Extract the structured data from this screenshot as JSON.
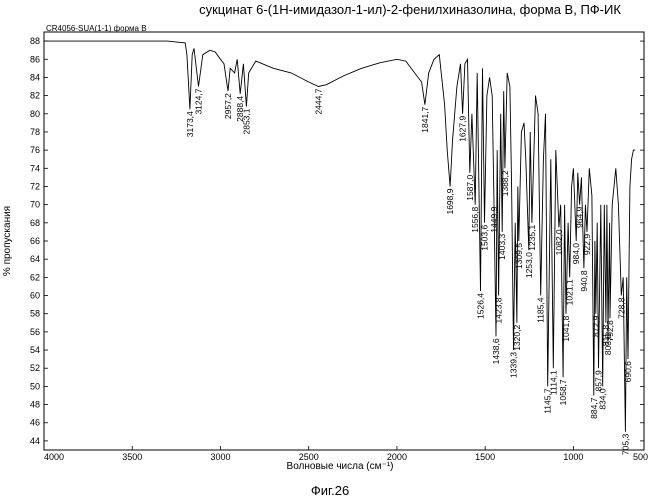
{
  "chart_data": {
    "type": "line",
    "title": "сукцинат 6-(1Н-имидазол-1-ил)-2-фенилхиназолина, форма В, ПФ-ИК",
    "sample_label": "CR4056-SUA(1-1) форма В",
    "xlabel": "Волновые числа (см⁻¹)",
    "ylabel": "% пропускания",
    "figure_caption": "Фиг.26",
    "xlim": [
      4000,
      600
    ],
    "ylim": [
      43,
      89
    ],
    "x_ticks": [
      4000,
      3500,
      3000,
      2500,
      2000,
      1500,
      1000,
      500
    ],
    "x_tick_labels": [
      "4000",
      "3500",
      "3000",
      "2500",
      "2000",
      "1500",
      "1000",
      "500"
    ],
    "y_ticks": [
      44,
      46,
      48,
      50,
      52,
      54,
      56,
      58,
      60,
      62,
      64,
      66,
      68,
      70,
      72,
      74,
      76,
      78,
      80,
      82,
      84,
      86,
      88
    ],
    "y_tick_labels": [
      "44",
      "46",
      "48",
      "50",
      "52",
      "54",
      "56",
      "58",
      "60",
      "62",
      "64",
      "66",
      "68",
      "70",
      "72",
      "74",
      "76",
      "78",
      "80",
      "82",
      "84",
      "86",
      "88"
    ],
    "series": [
      {
        "color": "#000000",
        "x": [
          4000,
          3800,
          3600,
          3400,
          3300,
          3200,
          3190,
          3173.4,
          3160,
          3150,
          3124.7,
          3100,
          3060,
          3030,
          3000,
          2980,
          2957.2,
          2945,
          2920,
          2905,
          2888.4,
          2870,
          2853.1,
          2840,
          2800,
          2700,
          2600,
          2500,
          2444.7,
          2400,
          2300,
          2200,
          2100,
          2000,
          1950,
          1900,
          1860,
          1841.7,
          1820,
          1790,
          1760,
          1730,
          1715,
          1698.9,
          1685,
          1660,
          1640,
          1627.9,
          1615,
          1600,
          1587.0,
          1575,
          1556.8,
          1545,
          1526.4,
          1515,
          1503.6,
          1490,
          1475,
          1460,
          1449.9,
          1438.6,
          1432,
          1423.8,
          1412,
          1403.3,
          1395,
          1388.2,
          1375,
          1360,
          1350,
          1339.3,
          1330,
          1320.2,
          1315,
          1309.5,
          1295,
          1280,
          1270,
          1253.0,
          1245,
          1235.1,
          1215,
          1200,
          1185.4,
          1170,
          1158,
          1145.7,
          1128,
          1114.1,
          1100,
          1082.0,
          1072,
          1058.7,
          1050,
          1041.8,
          1030,
          1021.1,
          1010,
          1000,
          984.0,
          975,
          964.9,
          955,
          940.8,
          932,
          922.9,
          910,
          895,
          884.7,
          878,
          872.9,
          865,
          857.9,
          845,
          834.0,
          825,
          815.8,
          810,
          803.8,
          795,
          792.8,
          780,
          760,
          745,
          728.8,
          718,
          705.3,
          698,
          690.6,
          680,
          670,
          660,
          650
        ],
        "y": [
          88.0,
          88.0,
          88.0,
          88.0,
          88.0,
          87.8,
          86.5,
          80.5,
          86.5,
          87.2,
          83.0,
          86.5,
          87.0,
          86.8,
          86.0,
          85.5,
          82.5,
          85.0,
          84.5,
          86.0,
          82.2,
          85.5,
          80.8,
          84.5,
          85.8,
          85.0,
          84.5,
          83.5,
          83.0,
          83.2,
          84.2,
          85.0,
          85.6,
          86.0,
          85.8,
          84.5,
          83.5,
          81.0,
          84.5,
          86.0,
          86.5,
          81.0,
          76.0,
          72.0,
          77.0,
          83.0,
          85.5,
          80.0,
          85.5,
          86.0,
          73.5,
          80.0,
          70.0,
          84.5,
          60.5,
          85.0,
          68.0,
          82.0,
          84.0,
          82.0,
          70.0,
          55.5,
          76.0,
          60.0,
          80.0,
          67.0,
          82.5,
          74.0,
          84.5,
          83.0,
          72.0,
          54.0,
          68.0,
          57.0,
          72.0,
          66.0,
          78.0,
          79.0,
          75.0,
          65.0,
          78.0,
          68.0,
          82.0,
          80.0,
          60.0,
          75.0,
          80.0,
          50.0,
          75.0,
          52.0,
          76.0,
          67.5,
          70.0,
          51.0,
          70.0,
          58.0,
          68.0,
          62.0,
          72.0,
          74.0,
          66.0,
          73.5,
          70.0,
          73.0,
          63.0,
          70.0,
          67.0,
          74.0,
          71.0,
          49.0,
          66.0,
          58.0,
          68.0,
          52.0,
          70.0,
          50.0,
          70.0,
          57.0,
          70.0,
          56.0,
          68.0,
          57.5,
          70.0,
          74.0,
          70.0,
          60.0,
          62.0,
          45.0,
          62.0,
          53.0,
          72.0,
          75.0,
          76.0,
          76.0
        ]
      }
    ],
    "peak_labels": [
      {
        "x": 3173.4,
        "text": "3173,4",
        "y": 80.5
      },
      {
        "x": 3124.7,
        "text": "3124,7",
        "y": 83.0
      },
      {
        "x": 2957.2,
        "text": "2957,2",
        "y": 82.5
      },
      {
        "x": 2888.4,
        "text": "2888,4",
        "y": 82.2
      },
      {
        "x": 2853.1,
        "text": "2853,1",
        "y": 80.8
      },
      {
        "x": 2444.7,
        "text": "2444,7",
        "y": 83.0
      },
      {
        "x": 1841.7,
        "text": "1841,7",
        "y": 81.0
      },
      {
        "x": 1698.9,
        "text": "1698,9",
        "y": 72.0
      },
      {
        "x": 1627.9,
        "text": "1627,9",
        "y": 80.0
      },
      {
        "x": 1587.0,
        "text": "1587,0",
        "y": 73.5
      },
      {
        "x": 1556.8,
        "text": "1556,8",
        "y": 70.0
      },
      {
        "x": 1526.4,
        "text": "1526,4",
        "y": 60.5
      },
      {
        "x": 1503.6,
        "text": "1503,6",
        "y": 68.0
      },
      {
        "x": 1449.9,
        "text": "1449,9",
        "y": 70.0
      },
      {
        "x": 1438.6,
        "text": "1438,6",
        "y": 55.5
      },
      {
        "x": 1423.8,
        "text": "1423,8",
        "y": 60.0
      },
      {
        "x": 1403.3,
        "text": "1403,3",
        "y": 67.0
      },
      {
        "x": 1388.2,
        "text": "1388,2",
        "y": 74.0
      },
      {
        "x": 1339.3,
        "text": "1339,3",
        "y": 54.0
      },
      {
        "x": 1320.2,
        "text": "1320,2",
        "y": 57.0
      },
      {
        "x": 1309.5,
        "text": "1309,5",
        "y": 66.0
      },
      {
        "x": 1253.0,
        "text": "1253,0",
        "y": 65.0
      },
      {
        "x": 1235.1,
        "text": "1235,1",
        "y": 68.0
      },
      {
        "x": 1185.4,
        "text": "1185,4",
        "y": 60.0
      },
      {
        "x": 1145.7,
        "text": "1145,7",
        "y": 50.0
      },
      {
        "x": 1114.1,
        "text": "1114,1",
        "y": 52.0
      },
      {
        "x": 1082.0,
        "text": "1082,0",
        "y": 67.5
      },
      {
        "x": 1058.7,
        "text": "1058,7",
        "y": 51.0
      },
      {
        "x": 1041.8,
        "text": "1041,8",
        "y": 58.0
      },
      {
        "x": 1021.1,
        "text": "1021,1",
        "y": 62.0
      },
      {
        "x": 984.0,
        "text": "984,0",
        "y": 66.0
      },
      {
        "x": 964.9,
        "text": "964,9",
        "y": 70.0
      },
      {
        "x": 940.8,
        "text": "940,8",
        "y": 63.0
      },
      {
        "x": 922.9,
        "text": "922,9",
        "y": 67.0
      },
      {
        "x": 884.7,
        "text": "884,7",
        "y": 49.0
      },
      {
        "x": 872.9,
        "text": "872,9",
        "y": 58.0
      },
      {
        "x": 857.9,
        "text": "857,9",
        "y": 52.0
      },
      {
        "x": 834.0,
        "text": "834,0",
        "y": 50.0
      },
      {
        "x": 815.8,
        "text": "815,8",
        "y": 57.0
      },
      {
        "x": 803.8,
        "text": "803,8",
        "y": 56.0
      },
      {
        "x": 792.8,
        "text": "792,8",
        "y": 57.5
      },
      {
        "x": 728.8,
        "text": "728,8",
        "y": 60.0
      },
      {
        "x": 705.3,
        "text": "705,3",
        "y": 45.0
      },
      {
        "x": 690.6,
        "text": "690,6",
        "y": 53.0
      }
    ],
    "grid": false,
    "legend": "none"
  }
}
